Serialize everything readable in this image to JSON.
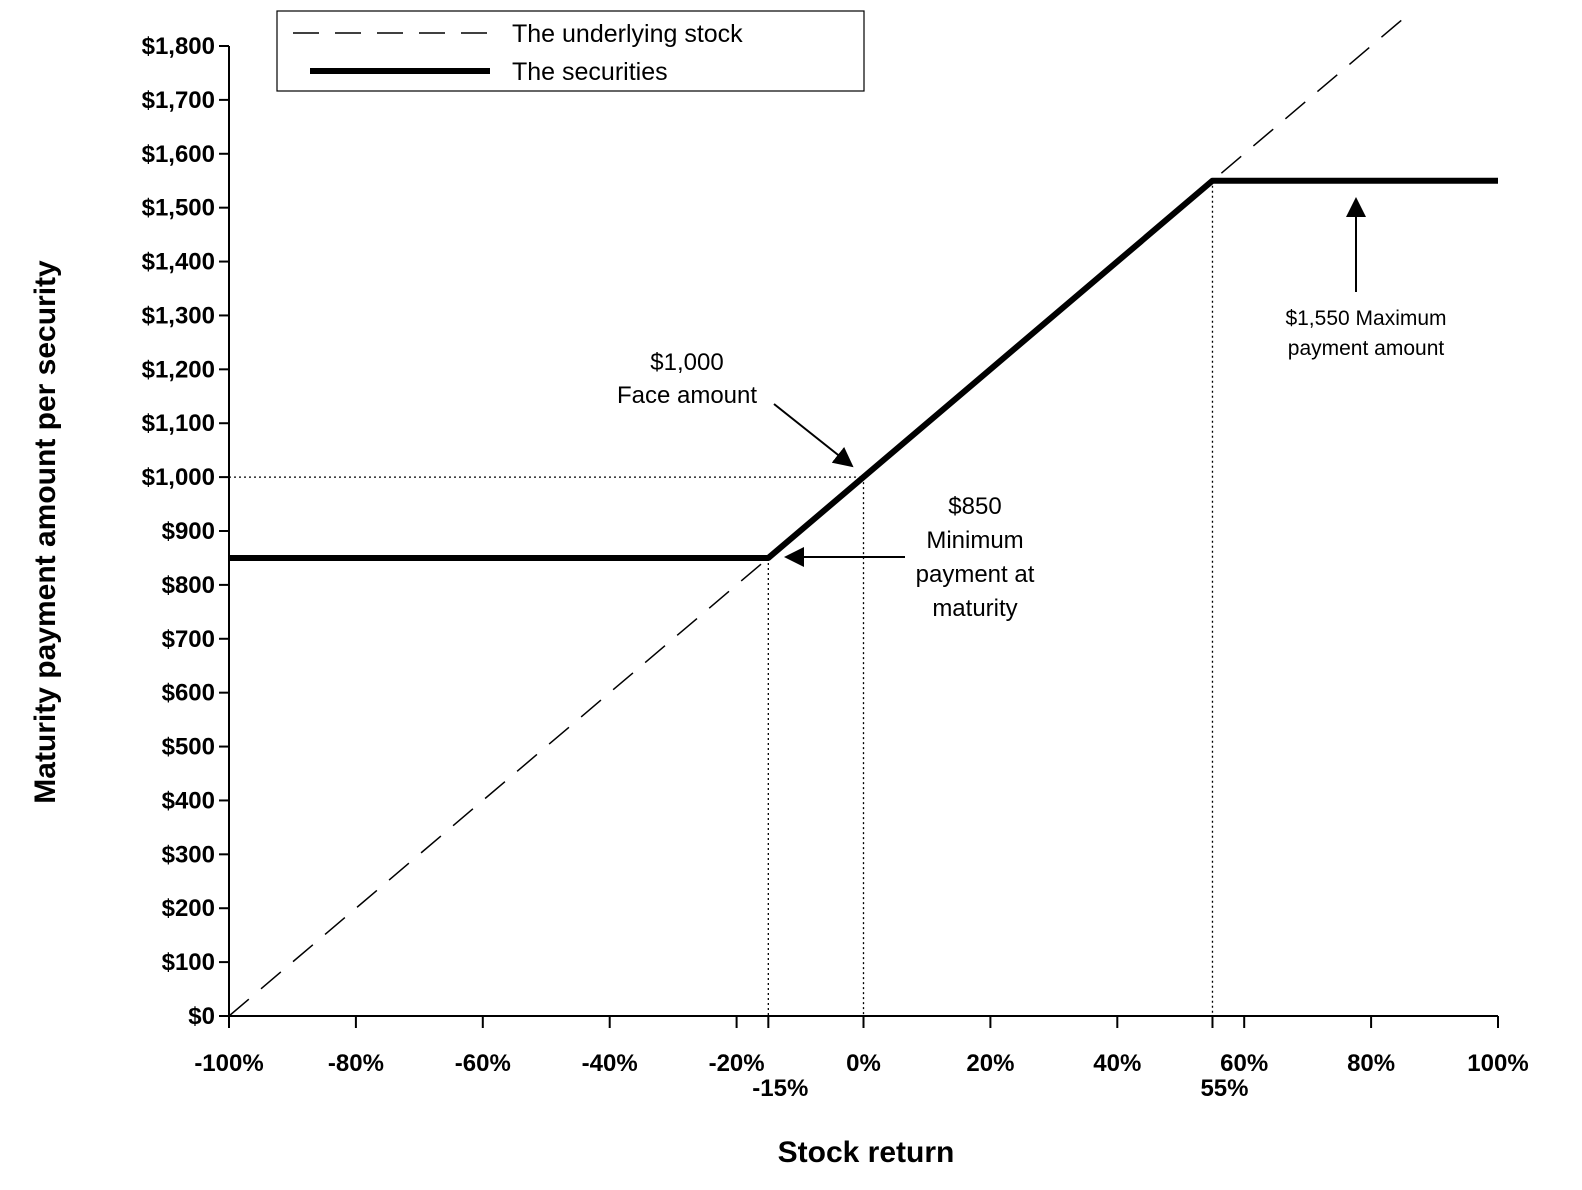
{
  "chart_data": {
    "type": "line",
    "xlabel": "Stock return",
    "ylabel": "Maturity payment amount per security",
    "xlim": [
      -100,
      100
    ],
    "ylim": [
      0,
      1800
    ],
    "x_ticks": [
      -100,
      -80,
      -60,
      -40,
      -20,
      0,
      20,
      40,
      60,
      80,
      100
    ],
    "x_tick_labels": [
      "-100%",
      "-80%",
      "-60%",
      "-40%",
      "-20%",
      "0%",
      "20%",
      "40%",
      "60%",
      "80%",
      "100%"
    ],
    "extra_x_ticks": [
      -15,
      55
    ],
    "extra_x_tick_labels": [
      "-15%",
      "55%"
    ],
    "y_ticks": [
      0,
      100,
      200,
      300,
      400,
      500,
      600,
      700,
      800,
      900,
      1000,
      1100,
      1200,
      1300,
      1400,
      1500,
      1600,
      1700,
      1800
    ],
    "y_tick_labels": [
      "$0",
      "$100",
      "$200",
      "$300",
      "$400",
      "$500",
      "$600",
      "$700",
      "$800",
      "$900",
      "$1,000",
      "$1,100",
      "$1,200",
      "$1,300",
      "$1,400",
      "$1,500",
      "$1,600",
      "$1,700",
      "$1,800"
    ],
    "legend": {
      "position": "top-left",
      "entries": [
        "The underlying stock",
        "The securities"
      ]
    },
    "series": [
      {
        "name": "The underlying stock",
        "style": "dashed",
        "x": [
          -100,
          85
        ],
        "y": [
          0,
          1850
        ]
      },
      {
        "name": "The securities",
        "style": "solid-thick",
        "x": [
          -100,
          -15,
          55,
          100
        ],
        "y": [
          850,
          850,
          1550,
          1550
        ]
      }
    ],
    "guide_lines": [
      {
        "x": -15,
        "y": 850
      },
      {
        "x": 0,
        "y": 1000
      },
      {
        "x": 55,
        "y": 1550
      }
    ],
    "annotations": [
      {
        "lines": [
          "$1,000",
          "Face amount"
        ],
        "points_to": {
          "x": 0,
          "y": 1000
        }
      },
      {
        "lines": [
          "$850",
          "Minimum",
          "payment at",
          "maturity"
        ],
        "points_to": {
          "x": -15,
          "y": 850
        }
      },
      {
        "lines": [
          "$1,550 Maximum",
          "payment amount"
        ],
        "points_to": {
          "x": 77,
          "y": 1550
        }
      }
    ],
    "grid": false
  }
}
